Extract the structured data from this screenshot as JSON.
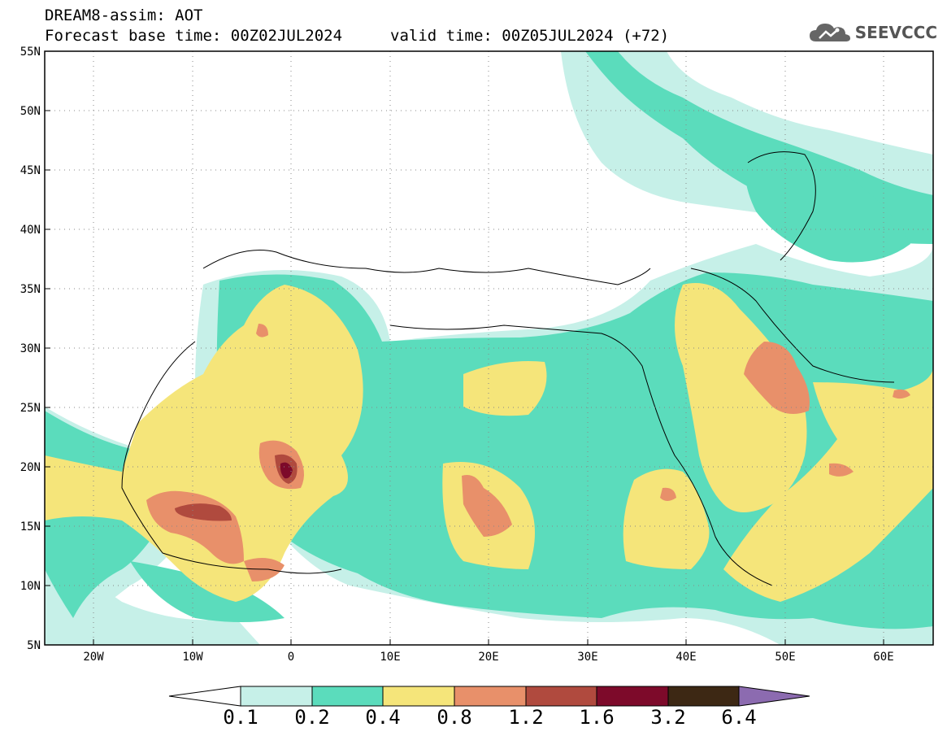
{
  "header": {
    "title": "DREAM8-assim: AOT",
    "base_time": "Forecast base time: 00Z02JUL2024",
    "valid_time": "valid time: 00Z05JUL2024 (+72)"
  },
  "logo": {
    "text": "SEEVCCC",
    "icon": "cloud-icon"
  },
  "axes": {
    "lat_labels": [
      "55N",
      "50N",
      "45N",
      "40N",
      "35N",
      "30N",
      "25N",
      "20N",
      "15N",
      "10N",
      "5N"
    ],
    "lon_labels": [
      "20W",
      "10W",
      "0",
      "10E",
      "20E",
      "30E",
      "40E",
      "50E",
      "60E"
    ],
    "lon_range": [
      -25,
      65
    ],
    "lat_range": [
      5,
      55
    ]
  },
  "colorbar": {
    "levels": [
      "0.1",
      "0.2",
      "0.4",
      "0.8",
      "1.2",
      "1.6",
      "3.2",
      "6.4"
    ],
    "colors": [
      "#c6f0e8",
      "#5bdcbc",
      "#f5e57a",
      "#e8906a",
      "#b04a3e",
      "#7d0a2a",
      "#3d2814",
      "#8c6bb0"
    ],
    "under_color": "#ffffff"
  }
}
